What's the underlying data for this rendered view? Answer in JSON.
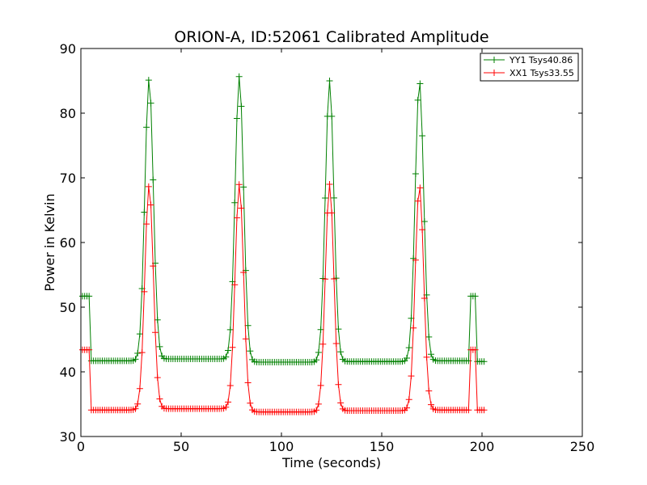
{
  "chart_data": {
    "type": "line",
    "title": "ORION-A, ID:52061 Calibrated Amplitude",
    "xlabel": "Time (seconds)",
    "ylabel": "Power in Kelvin",
    "xlim": [
      0,
      250
    ],
    "ylim": [
      30,
      90
    ],
    "xticks": [
      "0",
      "50",
      "100",
      "150",
      "200",
      "250"
    ],
    "yticks": [
      "30",
      "40",
      "50",
      "60",
      "70",
      "80",
      "90"
    ],
    "grid": false,
    "legend_position": "top-right",
    "marker": "+",
    "sample_spacing_seconds": 1.1,
    "series": [
      {
        "name": "YY1 Tsys40.86",
        "color": "#008000",
        "levels": {
          "start_segment": {
            "t_start": 0.8,
            "t_end": 5.0,
            "value": 51.7
          },
          "baseline_segment_1": {
            "t_start": 5.0,
            "t_end": 28.0,
            "value": 41.7
          },
          "baseline_segment_2": {
            "t_start": 39.0,
            "t_end": 73.0,
            "value": 42.0
          },
          "baseline_segment_3": {
            "t_start": 84.0,
            "t_end": 118.0,
            "value": 41.5
          },
          "baseline_segment_4": {
            "t_start": 129.0,
            "t_end": 163.0,
            "value": 41.6
          },
          "baseline_segment_5": {
            "t_start": 174.0,
            "t_end": 193.5,
            "value": 41.7
          },
          "end_segment": {
            "t_start": 193.5,
            "t_end": 197.3,
            "value": 51.7
          },
          "final_segment": {
            "t_start": 197.3,
            "t_end": 202.0,
            "value": 41.6
          }
        },
        "peaks": [
          {
            "t": 34.0,
            "value": 85.3
          },
          {
            "t": 79.0,
            "value": 85.7
          },
          {
            "t": 124.0,
            "value": 85.0
          },
          {
            "t": 168.8,
            "value": 85.0
          }
        ],
        "peak_half_width_seconds": 3.6
      },
      {
        "name": "XX1 Tsys33.55",
        "color": "#ff0000",
        "levels": {
          "start_segment": {
            "t_start": 0.8,
            "t_end": 5.0,
            "value": 43.4
          },
          "baseline_segment_1": {
            "t_start": 5.0,
            "t_end": 28.0,
            "value": 34.1
          },
          "baseline_segment_2": {
            "t_start": 39.0,
            "t_end": 73.0,
            "value": 34.3
          },
          "baseline_segment_3": {
            "t_start": 84.0,
            "t_end": 118.0,
            "value": 33.8
          },
          "baseline_segment_4": {
            "t_start": 129.0,
            "t_end": 163.0,
            "value": 34.0
          },
          "baseline_segment_5": {
            "t_start": 174.0,
            "t_end": 193.5,
            "value": 34.1
          },
          "end_segment": {
            "t_start": 193.5,
            "t_end": 197.3,
            "value": 43.4
          },
          "final_segment": {
            "t_start": 197.3,
            "t_end": 202.0,
            "value": 34.1
          }
        },
        "peaks": [
          {
            "t": 34.0,
            "value": 68.8
          },
          {
            "t": 79.0,
            "value": 69.0
          },
          {
            "t": 124.0,
            "value": 69.0
          },
          {
            "t": 168.8,
            "value": 68.8
          }
        ],
        "peak_half_width_seconds": 3.6
      }
    ]
  }
}
